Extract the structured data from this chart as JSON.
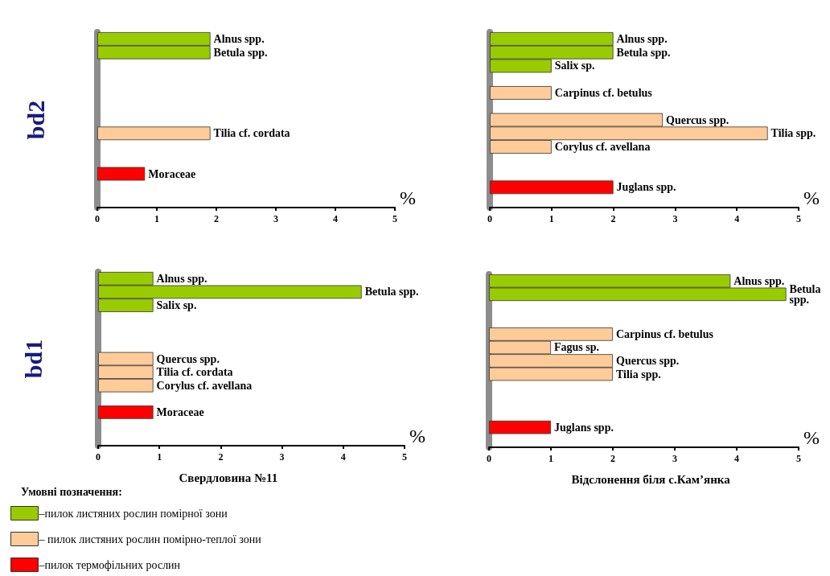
{
  "chart_data": [
    {
      "type": "bar",
      "orientation": "horizontal",
      "stacked": true,
      "ylabel": "bd2",
      "xlabel": "%",
      "tick_labels": "x",
      "grid": false,
      "legend": false,
      "categories": [
        "Alnus spp.",
        "Betula spp.",
        null,
        null,
        null,
        null,
        null,
        "Tilia cf. cordata",
        null,
        null,
        "Moraceae",
        null,
        null
      ],
      "series": [
        {
          "color": "#99cc00",
          "values": [
            1.9,
            1.9,
            null,
            null,
            null,
            null,
            null,
            null,
            null,
            null,
            null,
            null,
            null
          ]
        },
        {
          "color": "#ffcc99",
          "values": [
            null,
            null,
            null,
            null,
            null,
            null,
            null,
            1.9,
            null,
            null,
            null,
            null,
            null
          ]
        },
        {
          "color": "#ff0000",
          "values": [
            null,
            null,
            null,
            null,
            null,
            null,
            null,
            null,
            null,
            null,
            0.8,
            null,
            null
          ]
        }
      ],
      "xlim": [
        0,
        5
      ],
      "xticks": [
        0,
        1,
        2,
        3,
        4,
        5
      ]
    },
    {
      "type": "bar",
      "orientation": "horizontal",
      "stacked": true,
      "xlabel": "%",
      "tick_labels": "x",
      "grid": false,
      "legend": false,
      "categories": [
        "Alnus spp.",
        "Betula spp.",
        "Salix sp.",
        null,
        "Carpinus cf. betulus",
        null,
        "Quercus spp.",
        "Tilia spp.",
        "Corylus cf. avellana",
        null,
        null,
        "Juglans spp.",
        null
      ],
      "series": [
        {
          "color": "#99cc00",
          "values": [
            2,
            2,
            1,
            null,
            null,
            null,
            null,
            null,
            null,
            null,
            null,
            null,
            null
          ]
        },
        {
          "color": "#ffcc99",
          "values": [
            null,
            null,
            null,
            null,
            1,
            null,
            2.8,
            4.5,
            1,
            null,
            null,
            null,
            null
          ]
        },
        {
          "color": "#ff0000",
          "values": [
            null,
            null,
            null,
            null,
            null,
            null,
            null,
            null,
            null,
            null,
            null,
            2,
            null
          ]
        }
      ],
      "xlim": [
        0,
        5
      ],
      "xticks": [
        0,
        1,
        2,
        3,
        4,
        5
      ]
    },
    {
      "type": "bar",
      "orientation": "horizontal",
      "stacked": true,
      "ylabel": "bd1",
      "xlabel": "%",
      "tick_labels": "x",
      "grid": false,
      "legend": "bottom left",
      "legend_title": "Умовні позначення:",
      "annotations": [
        "Свердловина №11"
      ],
      "categories": [
        "Alnus spp.",
        "Betula spp.",
        "Salix sp.",
        null,
        null,
        null,
        "Quercus spp.",
        "Tilia cf. cordata",
        "Corylus cf. avellana",
        null,
        "Moraceae",
        null,
        null
      ],
      "series": [
        {
          "name": "–пилок листяних рослин помірної зони",
          "color": "#99cc00",
          "values": [
            0.9,
            4.3,
            0.9,
            null,
            null,
            null,
            null,
            null,
            null,
            null,
            null,
            null,
            null
          ]
        },
        {
          "name": "– пилок листяних рослин помірно-теплої зони",
          "color": "#ffcc99",
          "values": [
            null,
            null,
            null,
            null,
            null,
            null,
            0.9,
            0.9,
            0.9,
            null,
            null,
            null,
            null
          ]
        },
        {
          "name": "–пилок термофільних рослин",
          "color": "#ff0000",
          "values": [
            null,
            null,
            null,
            null,
            null,
            null,
            null,
            null,
            null,
            null,
            0.9,
            null,
            null
          ]
        }
      ],
      "xlim": [
        0,
        5
      ],
      "xticks": [
        0,
        1,
        2,
        3,
        4,
        5
      ]
    },
    {
      "type": "bar",
      "orientation": "horizontal",
      "stacked": true,
      "xlabel": "%",
      "tick_labels": "x",
      "grid": false,
      "legend": false,
      "annotations": [
        "Відслонення біля с.Кам’янка"
      ],
      "categories": [
        "Alnus spp.",
        "Betula spp.",
        null,
        null,
        "Carpinus cf. betulus",
        "Fagus sp.",
        "Quercus spp.",
        "Tilia spp.",
        null,
        null,
        null,
        "Juglans spp.",
        null
      ],
      "series": [
        {
          "color": "#99cc00",
          "values": [
            3.9,
            4.8,
            null,
            null,
            null,
            null,
            null,
            null,
            null,
            null,
            null,
            null,
            null
          ]
        },
        {
          "color": "#ffcc99",
          "values": [
            null,
            null,
            null,
            null,
            2,
            1,
            2,
            2,
            null,
            null,
            null,
            null,
            null
          ]
        },
        {
          "color": "#ff0000",
          "values": [
            null,
            null,
            null,
            null,
            null,
            null,
            null,
            null,
            null,
            null,
            null,
            1,
            null
          ]
        }
      ],
      "xlim": [
        0,
        5
      ],
      "xticks": [
        0,
        1,
        2,
        3,
        4,
        5
      ]
    }
  ]
}
